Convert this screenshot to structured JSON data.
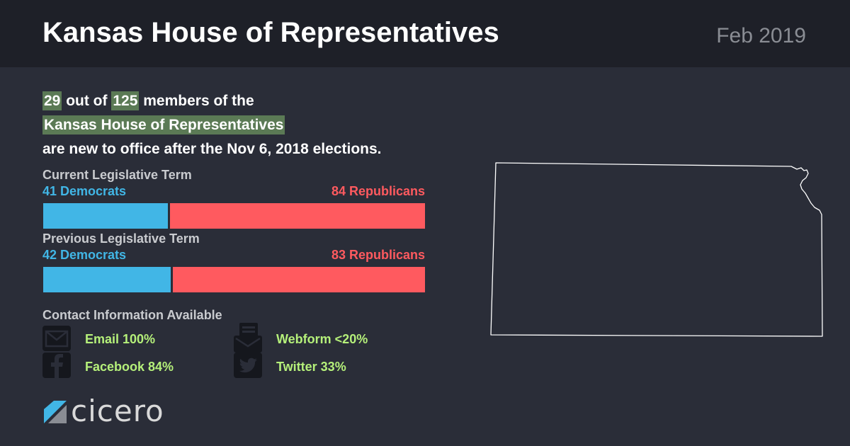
{
  "header": {
    "title": "Kansas House of Representatives",
    "date": "Feb 2019"
  },
  "summary": {
    "new_count": "29",
    "text_1": "out of",
    "total": "125",
    "text_2": "members of the",
    "body_name": "Kansas House of Representatives",
    "text_3": "are new to office after the Nov 6, 2018 elections."
  },
  "current_term": {
    "label": "Current Legislative Term",
    "democrats_label": "41 Democrats",
    "republicans_label": "84 Republicans",
    "democrats": 41,
    "republicans": 84
  },
  "previous_term": {
    "label": "Previous Legislative Term",
    "democrats_label": "42 Democrats",
    "republicans_label": "83 Republicans",
    "democrats": 42,
    "republicans": 83
  },
  "contact": {
    "title": "Contact Information Available",
    "items": [
      {
        "icon": "email-icon",
        "label": "Email 100%"
      },
      {
        "icon": "webform-icon",
        "label": "Webform <20%"
      },
      {
        "icon": "facebook-icon",
        "label": "Facebook 84%"
      },
      {
        "icon": "twitter-icon",
        "label": "Twitter 33%"
      }
    ]
  },
  "logo": {
    "text": "cicero"
  },
  "colors": {
    "democrat": "#41b6e6",
    "republican": "#ff5a5f",
    "highlight": "#5b7a55",
    "contact_text": "#b5f07a"
  }
}
